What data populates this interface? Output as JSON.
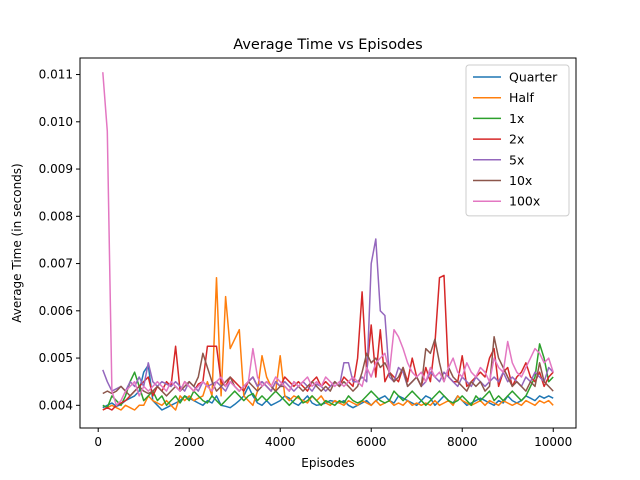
{
  "chart_data": {
    "type": "line",
    "title": "Average Time vs Episodes",
    "xlabel": "Episodes",
    "ylabel": "Average Time (in seconds)",
    "xlim": [
      -400,
      10500
    ],
    "ylim": [
      0.00352,
      0.01135
    ],
    "xticks": [
      0,
      2000,
      4000,
      6000,
      8000,
      10000
    ],
    "xtick_labels": [
      "0",
      "2000",
      "4000",
      "6000",
      "8000",
      "10000"
    ],
    "yticks": [
      0.004,
      0.005,
      0.006,
      0.007,
      0.008,
      0.009,
      0.01,
      0.011
    ],
    "ytick_labels": [
      "0.004",
      "0.005",
      "0.006",
      "0.007",
      "0.008",
      "0.009",
      "0.010",
      "0.011"
    ],
    "grid": false,
    "legend_position": "top-right",
    "x": [
      100,
      200,
      300,
      400,
      500,
      600,
      700,
      800,
      900,
      1000,
      1100,
      1200,
      1300,
      1400,
      1500,
      1600,
      1700,
      1800,
      1900,
      2000,
      2100,
      2200,
      2300,
      2400,
      2500,
      2600,
      2700,
      2800,
      2900,
      3000,
      3100,
      3200,
      3300,
      3400,
      3500,
      3600,
      3700,
      3800,
      3900,
      4000,
      4100,
      4200,
      4300,
      4400,
      4500,
      4600,
      4700,
      4800,
      4900,
      5000,
      5100,
      5200,
      5300,
      5400,
      5500,
      5600,
      5700,
      5800,
      5900,
      6000,
      6100,
      6200,
      6300,
      6400,
      6500,
      6600,
      6700,
      6800,
      6900,
      7000,
      7100,
      7200,
      7300,
      7400,
      7500,
      7600,
      7700,
      7800,
      7900,
      8000,
      8100,
      8200,
      8300,
      8400,
      8500,
      8600,
      8700,
      8800,
      8900,
      9000,
      9100,
      9200,
      9300,
      9400,
      9500,
      9600,
      9700,
      9800,
      9900,
      10000
    ],
    "series": [
      {
        "name": "Quarter",
        "color": "#1f77b4",
        "values": [
          0.00395,
          0.004,
          0.00405,
          0.00398,
          0.00402,
          0.0041,
          0.00415,
          0.0042,
          0.0043,
          0.0047,
          0.00485,
          0.0041,
          0.004,
          0.0039,
          0.00395,
          0.004,
          0.00405,
          0.0041,
          0.0042,
          0.00415,
          0.0041,
          0.00405,
          0.004,
          0.0041,
          0.00405,
          0.0042,
          0.004,
          0.00398,
          0.00395,
          0.00402,
          0.0041,
          0.0042,
          0.0044,
          0.0042,
          0.00405,
          0.004,
          0.0041,
          0.004,
          0.00405,
          0.0041,
          0.0042,
          0.00415,
          0.00405,
          0.004,
          0.0041,
          0.0042,
          0.00405,
          0.004,
          0.00402,
          0.00405,
          0.0041,
          0.00408,
          0.00405,
          0.0041,
          0.004,
          0.00395,
          0.004,
          0.00405,
          0.0041,
          0.004,
          0.0041,
          0.00415,
          0.0042,
          0.0041,
          0.00405,
          0.0042,
          0.00415,
          0.0041,
          0.00405,
          0.004,
          0.0041,
          0.0042,
          0.00415,
          0.004,
          0.0041,
          0.0042,
          0.0041,
          0.00405,
          0.0042,
          0.0041,
          0.004,
          0.00405,
          0.0041,
          0.00415,
          0.0041,
          0.00405,
          0.004,
          0.0041,
          0.00405,
          0.0042,
          0.0041,
          0.00405,
          0.0041,
          0.0042,
          0.00415,
          0.0041,
          0.0042,
          0.00415,
          0.0042,
          0.00415
        ]
      },
      {
        "name": "Half",
        "color": "#ff7f0e",
        "values": [
          0.0039,
          0.00395,
          0.004,
          0.00395,
          0.0039,
          0.004,
          0.00395,
          0.0039,
          0.004,
          0.004,
          0.0042,
          0.0041,
          0.00405,
          0.004,
          0.0041,
          0.004,
          0.0039,
          0.0042,
          0.0041,
          0.0042,
          0.0041,
          0.00415,
          0.0042,
          0.0045,
          0.0042,
          0.0067,
          0.0042,
          0.0063,
          0.0052,
          0.0054,
          0.0056,
          0.0042,
          0.0041,
          0.004,
          0.0043,
          0.00505,
          0.0046,
          0.0044,
          0.0043,
          0.00505,
          0.0042,
          0.0041,
          0.0042,
          0.00415,
          0.0041,
          0.00405,
          0.0042,
          0.0041,
          0.0042,
          0.00405,
          0.004,
          0.0041,
          0.00405,
          0.004,
          0.0041,
          0.00405,
          0.004,
          0.0041,
          0.00405,
          0.004,
          0.0041,
          0.004,
          0.00405,
          0.0041,
          0.004,
          0.00405,
          0.004,
          0.0041,
          0.004,
          0.00405,
          0.004,
          0.00405,
          0.004,
          0.0041,
          0.004,
          0.00405,
          0.0041,
          0.004,
          0.0042,
          0.0041,
          0.00405,
          0.004,
          0.00405,
          0.0041,
          0.004,
          0.0041,
          0.00405,
          0.004,
          0.0041,
          0.00405,
          0.004,
          0.00405,
          0.004,
          0.0041,
          0.00405,
          0.004,
          0.0041,
          0.00405,
          0.0041,
          0.004
        ]
      },
      {
        "name": "1x",
        "color": "#2ca02c",
        "values": [
          0.004,
          0.00395,
          0.0042,
          0.0041,
          0.004,
          0.0042,
          0.0045,
          0.0047,
          0.0044,
          0.0041,
          0.0042,
          0.0043,
          0.0041,
          0.0042,
          0.004,
          0.0041,
          0.0042,
          0.00405,
          0.0042,
          0.0041,
          0.0043,
          0.0042,
          0.0041,
          0.00405,
          0.0042,
          0.0041,
          0.004,
          0.0041,
          0.0042,
          0.0043,
          0.0042,
          0.0041,
          0.0042,
          0.00425,
          0.0041,
          0.0042,
          0.0041,
          0.0042,
          0.0043,
          0.0042,
          0.0041,
          0.004,
          0.0041,
          0.0042,
          0.00405,
          0.0041,
          0.0042,
          0.0041,
          0.004,
          0.0041,
          0.00405,
          0.004,
          0.0041,
          0.00405,
          0.0042,
          0.0041,
          0.00405,
          0.0041,
          0.0042,
          0.0043,
          0.0042,
          0.0041,
          0.00405,
          0.0041,
          0.0043,
          0.0042,
          0.0041,
          0.0042,
          0.0043,
          0.0042,
          0.0041,
          0.004,
          0.0041,
          0.0042,
          0.0043,
          0.0042,
          0.0041,
          0.00405,
          0.0041,
          0.0042,
          0.0041,
          0.004,
          0.0042,
          0.0041,
          0.0042,
          0.0043,
          0.0041,
          0.0042,
          0.0041,
          0.0042,
          0.0043,
          0.0042,
          0.0041,
          0.0042,
          0.0044,
          0.0046,
          0.0053,
          0.005,
          0.0045,
          0.0046
        ]
      },
      {
        "name": "2x",
        "color": "#d62728",
        "values": [
          0.0039,
          0.00395,
          0.0039,
          0.004,
          0.00405,
          0.0041,
          0.0042,
          0.0043,
          0.0044,
          0.0045,
          0.0046,
          0.0042,
          0.0044,
          0.0043,
          0.0045,
          0.0044,
          0.00525,
          0.0043,
          0.0045,
          0.0044,
          0.0043,
          0.00445,
          0.0045,
          0.00525,
          0.00525,
          0.00525,
          0.0045,
          0.0044,
          0.0046,
          0.0045,
          0.0044,
          0.0043,
          0.0045,
          0.0046,
          0.0044,
          0.0045,
          0.0044,
          0.0043,
          0.0045,
          0.0044,
          0.0046,
          0.0045,
          0.0044,
          0.0045,
          0.0044,
          0.0043,
          0.0045,
          0.0046,
          0.0044,
          0.0045,
          0.0044,
          0.0045,
          0.0044,
          0.0046,
          0.0045,
          0.0044,
          0.005,
          0.0064,
          0.0047,
          0.0057,
          0.0046,
          0.0056,
          0.0045,
          0.0047,
          0.0046,
          0.0045,
          0.0048,
          0.0045,
          0.005,
          0.0046,
          0.0044,
          0.0048,
          0.0045,
          0.0053,
          0.0067,
          0.00675,
          0.0046,
          0.0045,
          0.0045,
          0.00505,
          0.0044,
          0.0045,
          0.0046,
          0.0047,
          0.0046,
          0.005,
          0.0052,
          0.0044,
          0.0047,
          0.0048,
          0.0044,
          0.0046,
          0.0047,
          0.0049,
          0.0046,
          0.0045,
          0.0047,
          0.0044,
          0.0046,
          0.0047
        ]
      },
      {
        "name": "5x",
        "color": "#9467bd",
        "values": [
          0.00475,
          0.0045,
          0.0043,
          0.00435,
          0.0044,
          0.0043,
          0.0045,
          0.0044,
          0.0046,
          0.0044,
          0.0049,
          0.0045,
          0.0044,
          0.0045,
          0.00445,
          0.0044,
          0.0045,
          0.0044,
          0.0043,
          0.0045,
          0.0044,
          0.0043,
          0.0045,
          0.0044,
          0.00445,
          0.0045,
          0.0044,
          0.0043,
          0.0045,
          0.0044,
          0.0043,
          0.0044,
          0.0045,
          0.0046,
          0.0044,
          0.0045,
          0.0044,
          0.0043,
          0.0045,
          0.0044,
          0.0045,
          0.0044,
          0.0043,
          0.0044,
          0.0045,
          0.0044,
          0.0043,
          0.00445,
          0.0044,
          0.0043,
          0.0044,
          0.0045,
          0.0044,
          0.0049,
          0.0049,
          0.0045,
          0.0045,
          0.0046,
          0.0045,
          0.007,
          0.00752,
          0.006,
          0.0059,
          0.0046,
          0.0045,
          0.0048,
          0.0047,
          0.0044,
          0.0045,
          0.0046,
          0.0044,
          0.0045,
          0.0047,
          0.0046,
          0.0045,
          0.0047,
          0.0046,
          0.0045,
          0.0044,
          0.0046,
          0.0045,
          0.0044,
          0.0046,
          0.0045,
          0.0044,
          0.0045,
          0.0046,
          0.0045,
          0.0047,
          0.0045,
          0.0046,
          0.0045,
          0.0044,
          0.0046,
          0.0045,
          0.0047,
          0.0046,
          0.0045,
          0.0048,
          0.0047
        ]
      },
      {
        "name": "10x",
        "color": "#8c564b",
        "values": [
          0.00425,
          0.0043,
          0.00425,
          0.0043,
          0.0044,
          0.0043,
          0.0042,
          0.0043,
          0.0044,
          0.0043,
          0.00425,
          0.0043,
          0.0044,
          0.0043,
          0.0042,
          0.0043,
          0.0044,
          0.0043,
          0.0044,
          0.0045,
          0.0044,
          0.0046,
          0.0051,
          0.0048,
          0.0045,
          0.0043,
          0.0044,
          0.0045,
          0.0046,
          0.0044,
          0.0043,
          0.0044,
          0.0045,
          0.0044,
          0.0043,
          0.0044,
          0.0045,
          0.0044,
          0.0043,
          0.0044,
          0.0044,
          0.0043,
          0.0045,
          0.0044,
          0.0043,
          0.0044,
          0.0045,
          0.0044,
          0.0043,
          0.0044,
          0.0043,
          0.0045,
          0.0044,
          0.0045,
          0.0044,
          0.0043,
          0.0044,
          0.0047,
          0.0051,
          0.0049,
          0.005,
          0.0048,
          0.0049,
          0.0047,
          0.0045,
          0.0046,
          0.0048,
          0.0044,
          0.0045,
          0.0046,
          0.0044,
          0.0052,
          0.0051,
          0.0054,
          0.0049,
          0.0045,
          0.0048,
          0.0046,
          0.0045,
          0.0044,
          0.0043,
          0.0045,
          0.0044,
          0.0045,
          0.0043,
          0.0044,
          0.00545,
          0.005,
          0.0048,
          0.0046,
          0.0044,
          0.0045,
          0.0044,
          0.0043,
          0.0045,
          0.0044,
          0.0049,
          0.0045,
          0.0044,
          0.0043
        ]
      },
      {
        "name": "100x",
        "color": "#e377c2",
        "values": [
          0.01105,
          0.0098,
          0.0043,
          0.004,
          0.0041,
          0.0043,
          0.0044,
          0.0045,
          0.0042,
          0.0044,
          0.0043,
          0.0044,
          0.0045,
          0.0044,
          0.0043,
          0.0045,
          0.0044,
          0.0043,
          0.0045,
          0.0044,
          0.0043,
          0.0044,
          0.0045,
          0.0044,
          0.0043,
          0.0045,
          0.0046,
          0.0044,
          0.0045,
          0.0044,
          0.0043,
          0.0044,
          0.0045,
          0.0052,
          0.0046,
          0.0044,
          0.0045,
          0.0044,
          0.0046,
          0.0045,
          0.0044,
          0.0043,
          0.0045,
          0.0044,
          0.0045,
          0.0046,
          0.0044,
          0.0045,
          0.0044,
          0.0046,
          0.0045,
          0.0044,
          0.0045,
          0.0044,
          0.0045,
          0.0046,
          0.0045,
          0.0044,
          0.0048,
          0.0046,
          0.0049,
          0.005,
          0.0051,
          0.0047,
          0.0056,
          0.00545,
          0.0052,
          0.0049,
          0.0047,
          0.0046,
          0.0047,
          0.0045,
          0.0048,
          0.0046,
          0.0047,
          0.0045,
          0.0048,
          0.005,
          0.0047,
          0.0046,
          0.0049,
          0.0047,
          0.0046,
          0.0048,
          0.0047,
          0.0045,
          0.005,
          0.0048,
          0.0047,
          0.00535,
          0.0049,
          0.0047,
          0.0046,
          0.0048,
          0.005,
          0.0052,
          0.0051,
          0.0049,
          0.005,
          0.0047
        ]
      }
    ]
  }
}
